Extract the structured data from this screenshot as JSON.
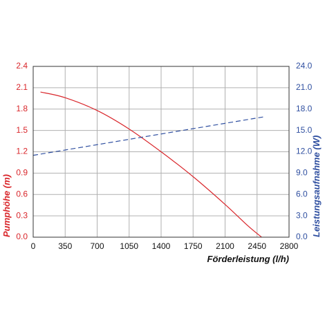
{
  "chart_data": {
    "type": "line",
    "xlabel": "Förderleistung (l/h)",
    "ylabel_left": "Pumphöhe (m)",
    "ylabel_right": "Leistungsaufnahme (W)",
    "xlim": [
      0,
      2800
    ],
    "ylim_left": [
      0,
      2.4
    ],
    "ylim_right": [
      0,
      24
    ],
    "grid": true,
    "x_ticks": [
      "0",
      "350",
      "700",
      "1050",
      "1400",
      "1750",
      "2100",
      "2450",
      "2800"
    ],
    "y_left_ticks": [
      "0.0",
      "0.3",
      "0.6",
      "0.9",
      "1.2",
      "1.5",
      "1.8",
      "2.1",
      "2.4"
    ],
    "y_right_ticks": [
      "0.0",
      "3.0",
      "6.0",
      "9.0",
      "12.0",
      "15.0",
      "18.0",
      "21.0",
      "24.0"
    ],
    "series": [
      {
        "axis": "left",
        "color": "#d9262b",
        "style": "solid",
        "x": [
          80,
          350,
          700,
          1050,
          1400,
          1750,
          2100,
          2350,
          2500
        ],
        "y": [
          2.04,
          1.96,
          1.78,
          1.52,
          1.2,
          0.85,
          0.46,
          0.16,
          0.0
        ]
      },
      {
        "axis": "right",
        "color": "#2f4fa0",
        "style": "dashed",
        "x": [
          0,
          2520
        ],
        "y": [
          11.5,
          16.9
        ]
      }
    ],
    "colors": {
      "left_axis": "#d9262b",
      "right_axis": "#2f4fa0",
      "grid": "#b0b0b0",
      "frame": "#333333"
    }
  }
}
